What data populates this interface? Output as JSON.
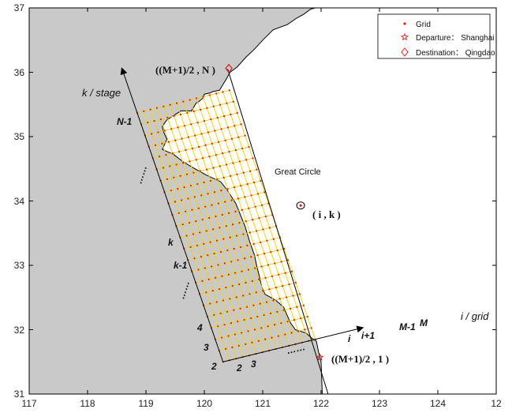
{
  "chart_data": {
    "type": "diagram-map",
    "xlim": [
      117,
      125
    ],
    "ylim": [
      31,
      37
    ],
    "x_ticks": [
      "117",
      "118",
      "119",
      "120",
      "121",
      "122",
      "123",
      "124",
      "12"
    ],
    "y_ticks": [
      "31",
      "32",
      "33",
      "34",
      "35",
      "36",
      "37"
    ],
    "legend": {
      "placement": "top-right",
      "items": [
        {
          "label": "Grid",
          "marker": "dot"
        },
        {
          "label": "Departure： Shanghai",
          "marker": "star"
        },
        {
          "label": "Destination： Qingdao",
          "marker": "diamond"
        }
      ]
    },
    "axes_labels": {
      "i_axis": "i / grid",
      "k_axis": "k / stage"
    },
    "annotations": {
      "great_circle": "Great Circle",
      "top_node": "((M+1)/2 , N )",
      "bottom_node": "((M+1)/2 , 1 )",
      "cell": "( i , k )"
    },
    "k_labels": [
      "N-1",
      "k",
      "k-1",
      "4",
      "3",
      "2"
    ],
    "i_labels": [
      "2",
      "3",
      "i",
      "i+1",
      "M-1",
      "M"
    ],
    "dots": "……",
    "grid": {
      "origin": [
        120.32,
        31.5
      ],
      "i_end": [
        121.9,
        31.85
      ],
      "k_end": [
        118.85,
        35.37
      ],
      "i_cells": 14,
      "k_cells": 22,
      "color": "#f2d21a",
      "node_color": "#d32020"
    },
    "coastline": [
      [
        119.28,
        35.16
      ],
      [
        119.36,
        35.26
      ],
      [
        119.6,
        35.4
      ],
      [
        119.78,
        35.4
      ],
      [
        119.86,
        35.52
      ],
      [
        119.9,
        35.54
      ],
      [
        119.98,
        35.6
      ],
      [
        120.0,
        35.66
      ],
      [
        120.1,
        35.68
      ],
      [
        120.15,
        35.7
      ],
      [
        120.26,
        35.72
      ],
      [
        120.3,
        35.78
      ],
      [
        120.38,
        35.9
      ],
      [
        120.44,
        36.0
      ],
      [
        120.56,
        36.08
      ],
      [
        120.72,
        36.24
      ],
      [
        120.86,
        36.36
      ],
      [
        121.0,
        36.5
      ],
      [
        121.18,
        36.66
      ],
      [
        121.42,
        36.74
      ],
      [
        121.58,
        36.84
      ],
      [
        121.7,
        36.9
      ],
      [
        121.82,
        36.98
      ],
      [
        121.9,
        37.0
      ],
      [
        125,
        37
      ],
      [
        125,
        31
      ],
      [
        122.02,
        31.0
      ],
      [
        122.0,
        31.5
      ],
      [
        121.96,
        31.64
      ],
      [
        121.92,
        31.82
      ],
      [
        121.84,
        31.87
      ],
      [
        121.74,
        31.95
      ],
      [
        121.56,
        32.0
      ],
      [
        121.48,
        32.1
      ],
      [
        121.42,
        32.22
      ],
      [
        121.36,
        32.35
      ],
      [
        121.22,
        32.46
      ],
      [
        121.04,
        32.55
      ],
      [
        120.98,
        32.67
      ],
      [
        120.94,
        32.84
      ],
      [
        120.9,
        32.98
      ],
      [
        120.86,
        33.16
      ],
      [
        120.78,
        33.36
      ],
      [
        120.7,
        33.6
      ],
      [
        120.54,
        33.96
      ],
      [
        120.4,
        34.16
      ],
      [
        120.28,
        34.3
      ],
      [
        120.04,
        34.4
      ],
      [
        119.8,
        34.52
      ],
      [
        119.62,
        34.62
      ],
      [
        119.48,
        34.72
      ],
      [
        119.28,
        34.8
      ],
      [
        119.36,
        34.96
      ],
      [
        119.3,
        35.08
      ]
    ],
    "great_circle_line": [
      [
        120.4,
        36.05
      ],
      [
        122.12,
        31.0
      ]
    ],
    "departure": [
      121.98,
      31.57
    ],
    "destination": [
      120.42,
      36.06
    ],
    "highlight_node": [
      121.65,
      33.93
    ],
    "colors": {
      "land": "#c9c9c9",
      "sea": "#ffffff",
      "grid": "#f2d21a",
      "node": "#d32020",
      "line": "#000000"
    }
  }
}
